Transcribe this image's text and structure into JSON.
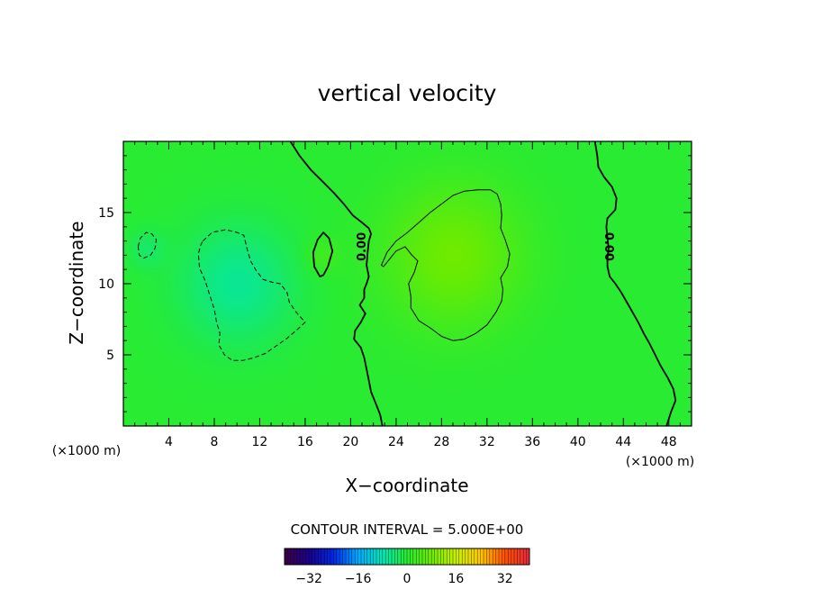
{
  "chart_data": {
    "type": "heatmap",
    "title": "vertical velocity",
    "xlabel": "X−coordinate",
    "ylabel": "Z−coordinate",
    "x_unit": "(×1000 m)",
    "y_unit": "(×1000 m)",
    "xlim": [
      0,
      50
    ],
    "ylim": [
      0,
      20
    ],
    "x_ticks": [
      4,
      8,
      12,
      16,
      20,
      24,
      28,
      32,
      36,
      40,
      44,
      48
    ],
    "y_ticks": [
      5,
      10,
      15
    ],
    "contour_interval_text": "CONTOUR INTERVAL = 5.000E+00",
    "contour_labels": [
      "0.00",
      "0.00"
    ],
    "colorbar": {
      "range": [
        -40,
        40
      ],
      "ticks": [
        -32,
        -16,
        0,
        16,
        32
      ],
      "tick_labels": [
        "−32",
        "−16",
        "0",
        "16",
        "32"
      ]
    },
    "field_blobs": [
      {
        "x": 10,
        "z": 10,
        "value": -6,
        "radius": 5
      },
      {
        "x": 2,
        "z": 12.5,
        "value": -3,
        "radius": 1.6
      },
      {
        "x": 17.5,
        "z": 12,
        "value": 3,
        "radius": 1.5
      },
      {
        "x": 29,
        "z": 12,
        "value": 8,
        "radius": 6
      }
    ],
    "contours": [
      {
        "level": 0,
        "style": "solid-thick",
        "points": [
          [
            14.7,
            20
          ],
          [
            15.5,
            19
          ],
          [
            16.5,
            18
          ],
          [
            17.5,
            17.2
          ],
          [
            18.5,
            16.4
          ],
          [
            19.4,
            15.6
          ],
          [
            20.2,
            14.8
          ],
          [
            21,
            14.3
          ],
          [
            21.6,
            13.9
          ],
          [
            21.8,
            13.5
          ],
          [
            21.6,
            13
          ],
          [
            21.5,
            12.2
          ],
          [
            21.4,
            11.3
          ],
          [
            21.6,
            10.5
          ],
          [
            21.4,
            10
          ],
          [
            21.2,
            9.6
          ],
          [
            21.2,
            9
          ],
          [
            20.8,
            8.5
          ],
          [
            21.3,
            7.9
          ],
          [
            20.9,
            7.3
          ],
          [
            20.4,
            6.7
          ],
          [
            20.3,
            6.1
          ],
          [
            20.9,
            5.5
          ],
          [
            21.2,
            4.8
          ],
          [
            21.4,
            4
          ],
          [
            21.6,
            3.2
          ],
          [
            21.8,
            2.4
          ],
          [
            22.2,
            1.6
          ],
          [
            22.6,
            0.8
          ],
          [
            22.8,
            0
          ]
        ]
      },
      {
        "level": 0,
        "style": "solid-thick",
        "points": [
          [
            41.5,
            20
          ],
          [
            41.7,
            19
          ],
          [
            41.8,
            18.2
          ],
          [
            42.3,
            17.5
          ],
          [
            43,
            16.8
          ],
          [
            43.4,
            16
          ],
          [
            43.3,
            15.2
          ],
          [
            42.6,
            14.6
          ],
          [
            42.5,
            14
          ],
          [
            42.6,
            13.2
          ],
          [
            42.7,
            12.5
          ],
          [
            42.6,
            11.8
          ],
          [
            42.6,
            11.2
          ],
          [
            42.8,
            10.5
          ],
          [
            43.3,
            10
          ],
          [
            43.8,
            9.4
          ],
          [
            44.3,
            8.7
          ],
          [
            44.8,
            8
          ],
          [
            45.3,
            7.3
          ],
          [
            45.8,
            6.5
          ],
          [
            46.3,
            5.8
          ],
          [
            46.8,
            5
          ],
          [
            47.3,
            4.2
          ],
          [
            47.9,
            3.4
          ],
          [
            48.4,
            2.6
          ],
          [
            48.6,
            1.8
          ],
          [
            48.2,
            1
          ],
          [
            47.8,
            0
          ]
        ]
      },
      {
        "level": 0,
        "style": "solid-thick",
        "closed": true,
        "points": [
          [
            17.3,
            10.5
          ],
          [
            16.8,
            11.2
          ],
          [
            16.7,
            12.2
          ],
          [
            17.1,
            13.1
          ],
          [
            17.6,
            13.6
          ],
          [
            18.1,
            13.2
          ],
          [
            18.4,
            12.3
          ],
          [
            18.0,
            11.2
          ],
          [
            17.6,
            10.6
          ]
        ]
      },
      {
        "level": 5,
        "style": "solid-thin",
        "closed": true,
        "points": [
          [
            22.7,
            11.3
          ],
          [
            23.2,
            12.2
          ],
          [
            24.0,
            13.0
          ],
          [
            25.0,
            13.6
          ],
          [
            26.0,
            14.3
          ],
          [
            27.0,
            15.0
          ],
          [
            28.0,
            15.6
          ],
          [
            29.0,
            16.2
          ],
          [
            30.0,
            16.5
          ],
          [
            31.2,
            16.6
          ],
          [
            32.3,
            16.6
          ],
          [
            32.9,
            16.3
          ],
          [
            33.2,
            15.6
          ],
          [
            33.3,
            14.8
          ],
          [
            33.2,
            13.9
          ],
          [
            33.6,
            13.1
          ],
          [
            34.0,
            12.1
          ],
          [
            33.8,
            11.2
          ],
          [
            33.2,
            10.4
          ],
          [
            33.4,
            9.6
          ],
          [
            33.3,
            8.8
          ],
          [
            32.8,
            8.0
          ],
          [
            32.0,
            7.1
          ],
          [
            31.0,
            6.5
          ],
          [
            30.0,
            6.1
          ],
          [
            29.0,
            6.0
          ],
          [
            28.0,
            6.3
          ],
          [
            27.0,
            6.9
          ],
          [
            26.0,
            7.4
          ],
          [
            25.3,
            8.3
          ],
          [
            25.3,
            9.1
          ],
          [
            25.1,
            10.0
          ],
          [
            25.6,
            10.8
          ],
          [
            25.9,
            11.6
          ],
          [
            25.4,
            12.0
          ],
          [
            24.8,
            12.6
          ],
          [
            24.0,
            12.3
          ],
          [
            23.3,
            11.6
          ],
          [
            22.9,
            11.2
          ]
        ]
      },
      {
        "level": -5,
        "style": "dashed",
        "closed": true,
        "points": [
          [
            7.0,
            13.0
          ],
          [
            7.8,
            13.6
          ],
          [
            9.0,
            13.8
          ],
          [
            10.0,
            13.6
          ],
          [
            10.6,
            13.4
          ],
          [
            10.9,
            12.4
          ],
          [
            11.2,
            11.6
          ],
          [
            11.7,
            10.9
          ],
          [
            12.3,
            10.3
          ],
          [
            13.1,
            10.1
          ],
          [
            13.8,
            10.0
          ],
          [
            14.4,
            9.4
          ],
          [
            14.6,
            8.7
          ],
          [
            15.2,
            8.0
          ],
          [
            16.0,
            7.3
          ],
          [
            15.2,
            6.7
          ],
          [
            14.3,
            6.1
          ],
          [
            13.4,
            5.6
          ],
          [
            12.5,
            5.1
          ],
          [
            11.5,
            4.8
          ],
          [
            10.5,
            4.6
          ],
          [
            9.6,
            4.6
          ],
          [
            8.9,
            5.0
          ],
          [
            8.4,
            5.7
          ],
          [
            8.5,
            6.5
          ],
          [
            8.2,
            7.3
          ],
          [
            8.0,
            8.2
          ],
          [
            7.6,
            9.2
          ],
          [
            7.2,
            10.2
          ],
          [
            6.7,
            11.1
          ],
          [
            6.6,
            12.1
          ],
          [
            6.8,
            12.7
          ]
        ]
      },
      {
        "level": -5,
        "style": "dashed",
        "closed": true,
        "points": [
          [
            1.3,
            12.6
          ],
          [
            1.5,
            13.2
          ],
          [
            2.0,
            13.6
          ],
          [
            2.5,
            13.5
          ],
          [
            2.9,
            13.1
          ],
          [
            2.8,
            12.5
          ],
          [
            2.4,
            12.0
          ],
          [
            1.8,
            11.8
          ],
          [
            1.4,
            12.0
          ]
        ]
      }
    ],
    "contour_label_positions": [
      {
        "x": 21.3,
        "z": 12.6
      },
      {
        "x": 42.4,
        "z": 12.6
      }
    ]
  }
}
